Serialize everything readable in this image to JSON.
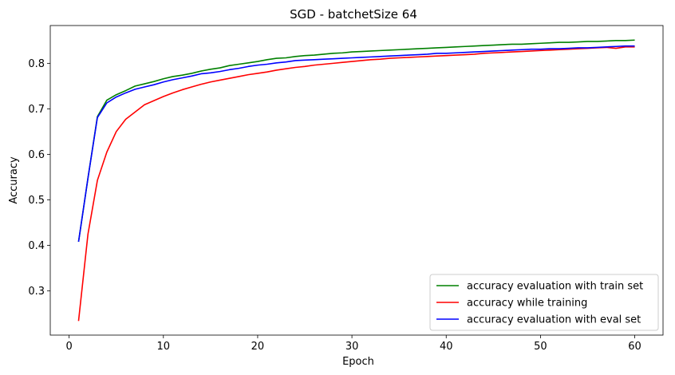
{
  "chart_data": {
    "type": "line",
    "title": "SGD - batchetSize 64",
    "xlabel": "Epoch",
    "ylabel": "Accuracy",
    "xlim": [
      -2.0,
      63.0
    ],
    "ylim": [
      0.203,
      0.883
    ],
    "xticks": [
      0,
      10,
      20,
      30,
      40,
      50,
      60
    ],
    "yticks": [
      0.3,
      0.4,
      0.5,
      0.6,
      0.7,
      0.8
    ],
    "xtick_labels": [
      "0",
      "10",
      "20",
      "30",
      "40",
      "50",
      "60"
    ],
    "ytick_labels": [
      "0.3",
      "0.4",
      "0.5",
      "0.6",
      "0.7",
      "0.8"
    ],
    "grid": false,
    "legend_position": "lower right",
    "x": [
      1,
      2,
      3,
      4,
      5,
      6,
      7,
      8,
      9,
      10,
      11,
      12,
      13,
      14,
      15,
      16,
      17,
      18,
      19,
      20,
      21,
      22,
      23,
      24,
      25,
      26,
      27,
      28,
      29,
      30,
      31,
      32,
      33,
      34,
      35,
      36,
      37,
      38,
      39,
      40,
      41,
      42,
      43,
      44,
      45,
      46,
      47,
      48,
      49,
      50,
      51,
      52,
      53,
      54,
      55,
      56,
      57,
      58,
      59,
      60
    ],
    "series": [
      {
        "name": "accuracy evaluation with train set",
        "color": "#008000",
        "values": [
          0.408,
          0.548,
          0.683,
          0.719,
          0.731,
          0.74,
          0.75,
          0.755,
          0.76,
          0.766,
          0.771,
          0.774,
          0.778,
          0.783,
          0.787,
          0.79,
          0.795,
          0.798,
          0.801,
          0.804,
          0.808,
          0.811,
          0.812,
          0.815,
          0.817,
          0.818,
          0.82,
          0.822,
          0.823,
          0.825,
          0.826,
          0.827,
          0.828,
          0.829,
          0.83,
          0.831,
          0.832,
          0.833,
          0.834,
          0.835,
          0.836,
          0.837,
          0.838,
          0.839,
          0.84,
          0.841,
          0.842,
          0.842,
          0.843,
          0.844,
          0.845,
          0.846,
          0.846,
          0.847,
          0.848,
          0.848,
          0.849,
          0.85,
          0.85,
          0.851
        ]
      },
      {
        "name": "accuracy while training",
        "color": "#ff0000",
        "values": [
          0.234,
          0.425,
          0.543,
          0.605,
          0.65,
          0.677,
          0.693,
          0.709,
          0.718,
          0.727,
          0.735,
          0.742,
          0.748,
          0.754,
          0.759,
          0.763,
          0.767,
          0.771,
          0.775,
          0.778,
          0.781,
          0.785,
          0.788,
          0.791,
          0.793,
          0.796,
          0.798,
          0.8,
          0.802,
          0.804,
          0.806,
          0.808,
          0.809,
          0.811,
          0.812,
          0.813,
          0.814,
          0.815,
          0.816,
          0.817,
          0.818,
          0.819,
          0.82,
          0.822,
          0.823,
          0.824,
          0.825,
          0.826,
          0.827,
          0.828,
          0.829,
          0.83,
          0.831,
          0.832,
          0.833,
          0.834,
          0.835,
          0.833,
          0.836,
          0.836
        ]
      },
      {
        "name": "accuracy evaluation with eval set",
        "color": "#0000ff",
        "values": [
          0.408,
          0.548,
          0.681,
          0.713,
          0.726,
          0.735,
          0.743,
          0.748,
          0.753,
          0.759,
          0.764,
          0.768,
          0.772,
          0.777,
          0.779,
          0.782,
          0.786,
          0.789,
          0.793,
          0.796,
          0.798,
          0.801,
          0.803,
          0.806,
          0.807,
          0.808,
          0.809,
          0.81,
          0.811,
          0.812,
          0.813,
          0.814,
          0.815,
          0.816,
          0.817,
          0.818,
          0.819,
          0.82,
          0.822,
          0.822,
          0.823,
          0.824,
          0.825,
          0.826,
          0.827,
          0.828,
          0.829,
          0.83,
          0.831,
          0.831,
          0.832,
          0.832,
          0.833,
          0.834,
          0.834,
          0.835,
          0.836,
          0.837,
          0.838,
          0.838
        ]
      }
    ]
  }
}
